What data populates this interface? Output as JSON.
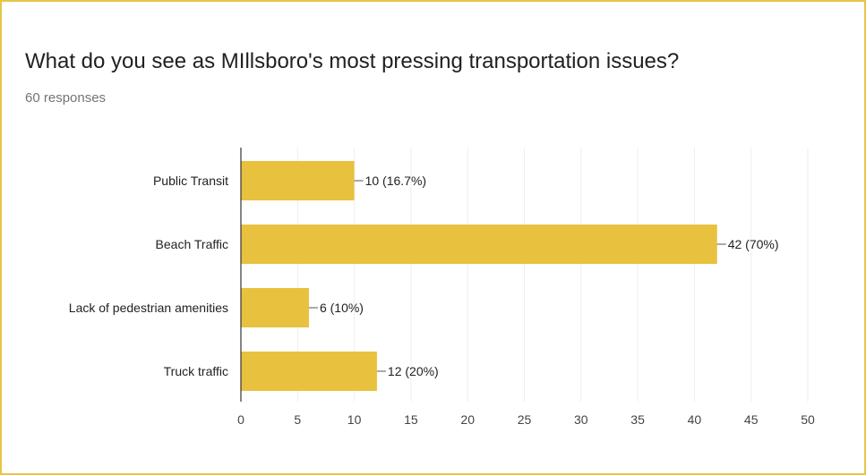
{
  "question": {
    "title": "What do you see as MIllsboro's most pressing transportation issues?",
    "responses": "60 responses"
  },
  "colors": {
    "bar": "#e8c13f",
    "border": "#e8c547",
    "axis": "#333333",
    "grid": "#eeeeee",
    "text": "#222222"
  },
  "chart_data": {
    "type": "bar",
    "orientation": "horizontal",
    "categories": [
      "Public Transit",
      "Beach Traffic",
      "Lack of pedestrian amenities",
      "Truck traffic"
    ],
    "values": [
      10,
      42,
      6,
      12
    ],
    "data_labels": [
      "10 (16.7%)",
      "42 (70%)",
      "6 (10%)",
      "12 (20%)"
    ],
    "xlim": [
      0,
      50
    ],
    "xticks": [
      0,
      5,
      10,
      15,
      20,
      25,
      30,
      35,
      40,
      45,
      50
    ],
    "grid": true,
    "legend": "none"
  }
}
